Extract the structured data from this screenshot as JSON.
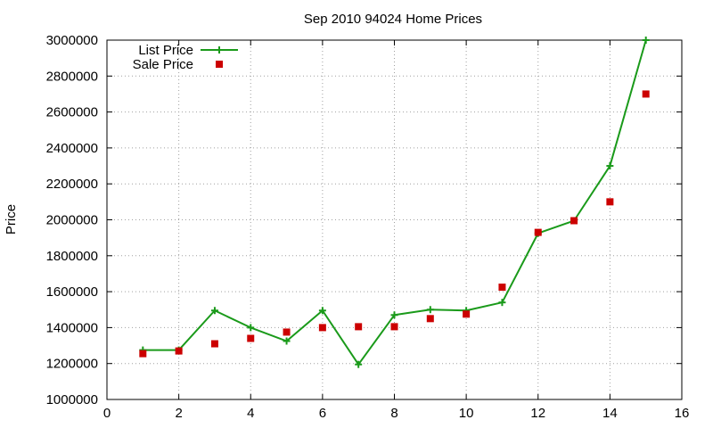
{
  "chart_data": {
    "type": "line",
    "title": "Sep 2010 94024 Home Prices",
    "xlabel": "",
    "ylabel": "Price",
    "xlim": [
      0,
      16
    ],
    "ylim": [
      1000000,
      3000000
    ],
    "x_ticks": [
      "0",
      "2",
      "4",
      "6",
      "8",
      "10",
      "12",
      "14",
      "16"
    ],
    "y_ticks": [
      "1000000",
      "1200000",
      "1400000",
      "1600000",
      "1800000",
      "2000000",
      "2200000",
      "2400000",
      "2600000",
      "2800000",
      "3000000"
    ],
    "grid": true,
    "legend_position": "top-left",
    "series": [
      {
        "name": "List Price",
        "style": "linespoints",
        "marker": "plus",
        "color": "#1a9a1a",
        "x": [
          1,
          2,
          3,
          4,
          5,
          6,
          7,
          8,
          9,
          10,
          11,
          12,
          13,
          14,
          15
        ],
        "y": [
          1275000,
          1275000,
          1495000,
          1400000,
          1325000,
          1495000,
          1195000,
          1470000,
          1500000,
          1495000,
          1540000,
          1925000,
          1995000,
          2300000,
          3000000
        ]
      },
      {
        "name": "Sale Price",
        "style": "points",
        "marker": "square",
        "color": "#cc0000",
        "x": [
          1,
          2,
          3,
          4,
          5,
          6,
          7,
          8,
          9,
          10,
          11,
          12,
          13,
          14,
          15
        ],
        "y": [
          1255000,
          1270000,
          1310000,
          1340000,
          1375000,
          1400000,
          1405000,
          1405000,
          1450000,
          1475000,
          1625000,
          1930000,
          1995000,
          2100000,
          2700000
        ]
      }
    ]
  }
}
